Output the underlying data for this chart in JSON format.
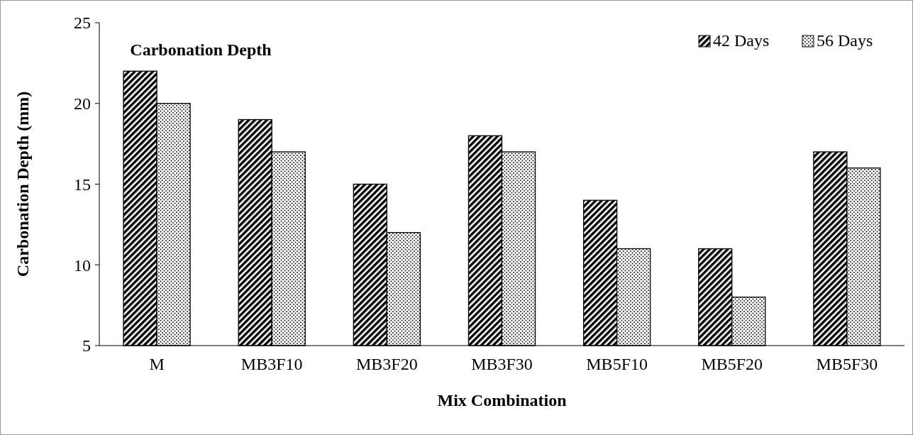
{
  "chart_data": {
    "type": "bar",
    "title": "Carbonation Depth",
    "xlabel": "Mix Combination",
    "ylabel": "Carbonation Depth (mm)",
    "categories": [
      "M",
      "MB3F10",
      "MB3F20",
      "MB3F30",
      "MB5F10",
      "MB5F20",
      "MB5F30"
    ],
    "series": [
      {
        "name": "42 Days",
        "color": "#000000",
        "values": [
          22,
          19,
          15,
          18,
          14,
          11,
          17
        ]
      },
      {
        "name": "56 Days",
        "color": "#000000",
        "values": [
          20,
          17,
          12,
          17,
          11,
          8,
          16
        ]
      }
    ],
    "ylim": [
      5,
      25
    ],
    "yticks": [
      5,
      10,
      15,
      20,
      25
    ],
    "grid": false,
    "legend": "top right"
  }
}
